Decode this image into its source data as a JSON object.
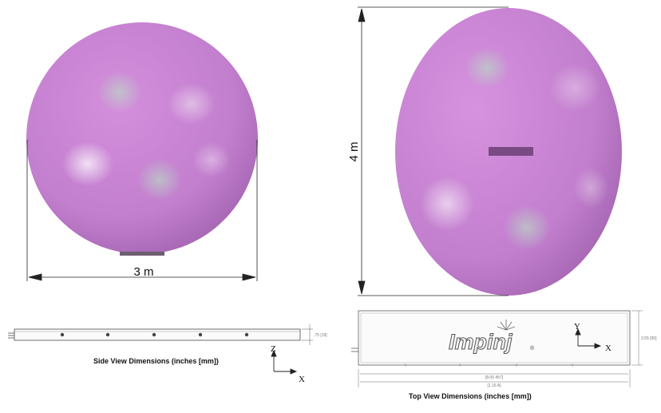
{
  "colors": {
    "balloon": "#c27fce",
    "balloon_dark": "#9a5aa6",
    "highlight": "#ffffff",
    "device_tag": "#7a4a84",
    "line": "#222222"
  },
  "sphere_view": {
    "width_label": "3 m"
  },
  "ellipsoid_view": {
    "height_label": "4 m"
  },
  "side_view": {
    "caption": "Side View Dimensions (inches [mm])",
    "height_dim": ".75 [19]",
    "axis_vertical": "Z",
    "axis_horizontal": "X"
  },
  "top_view": {
    "caption": "Top View Dimensions (inches [mm])",
    "logo_text": "Impinj",
    "logo_mark": "®",
    "width_dim_inner": "[8.00 457]",
    "width_dim_outer": "[1.16 A]",
    "height_dim": "3.55 [90]",
    "axis_vertical": "Y",
    "axis_horizontal": "X"
  }
}
